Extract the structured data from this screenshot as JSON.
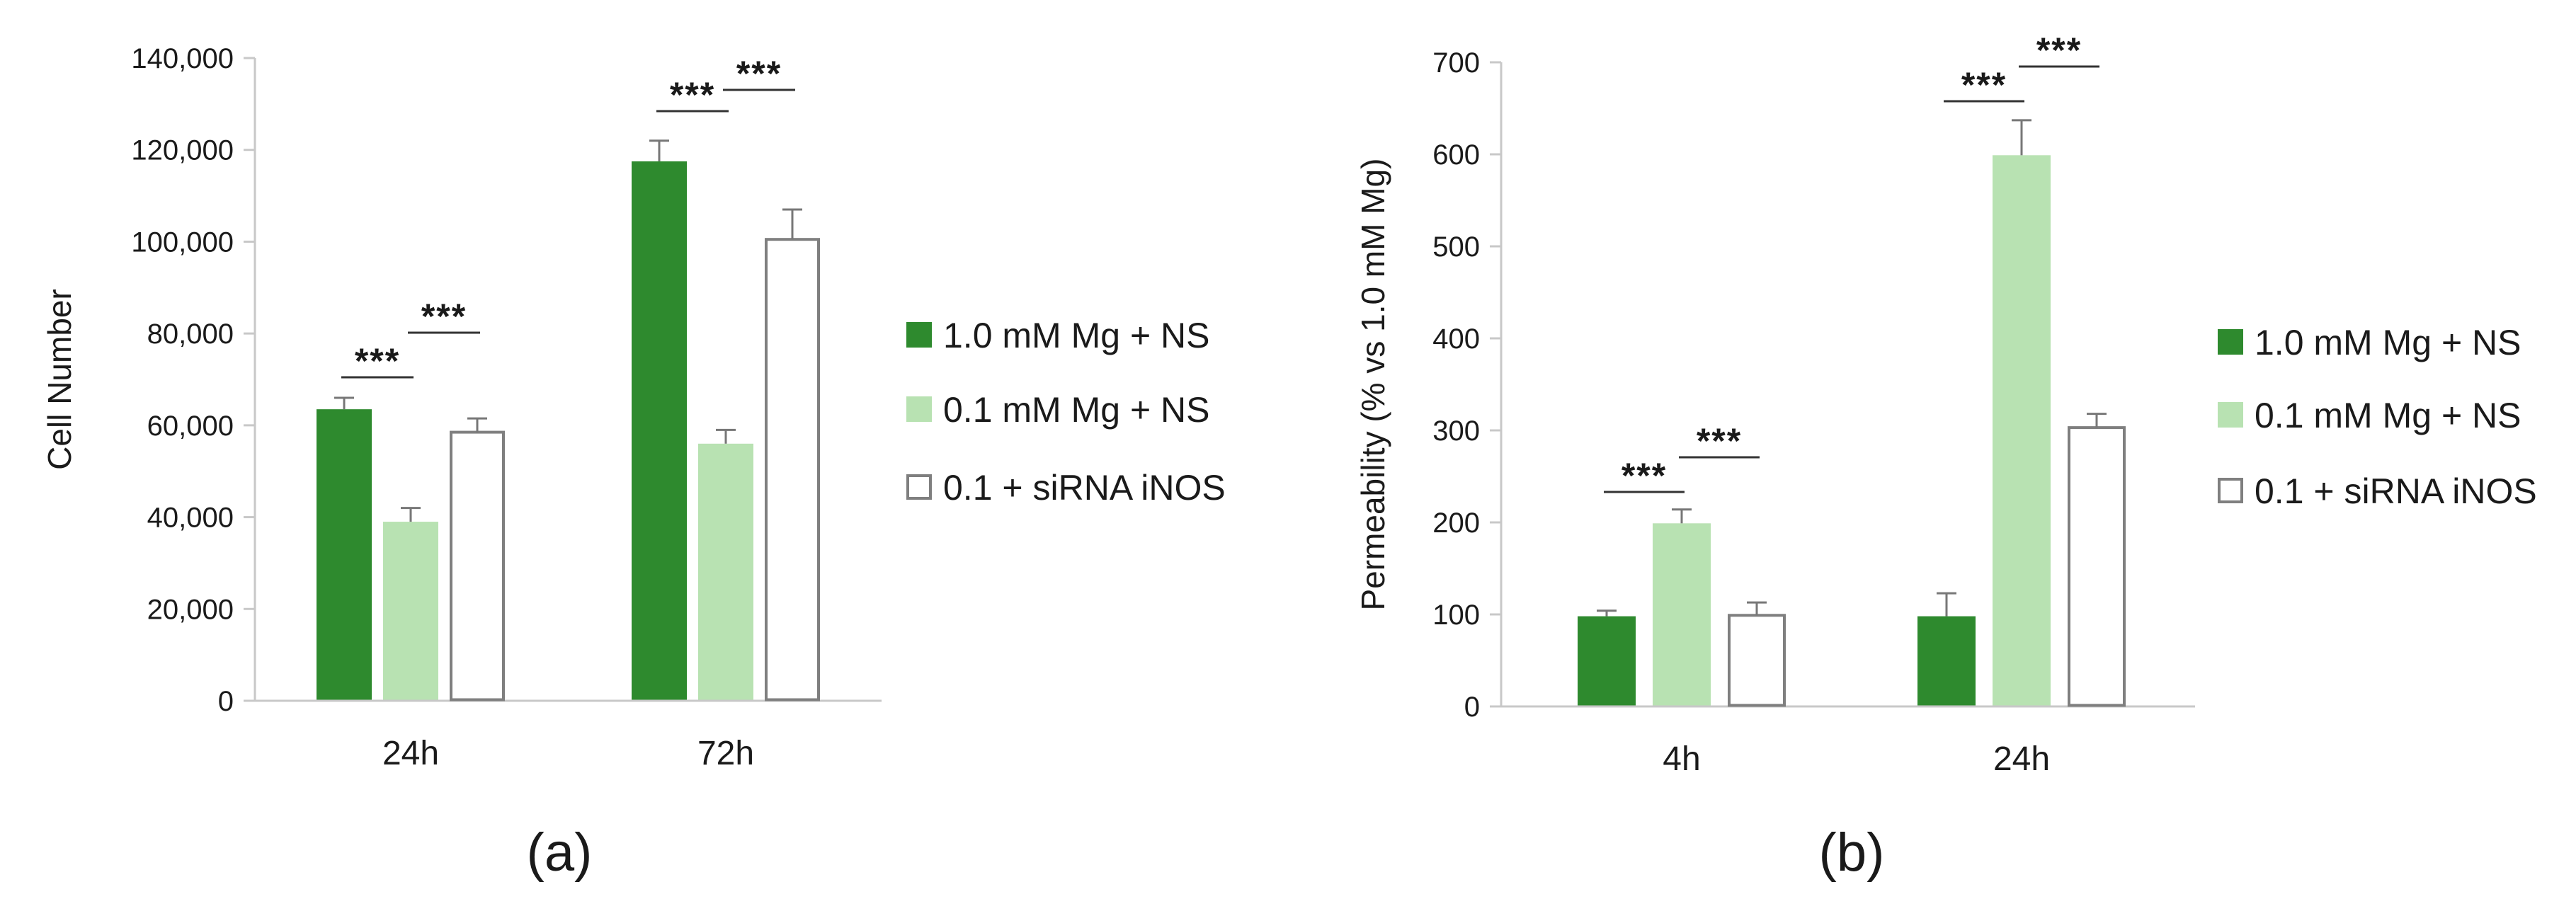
{
  "chart_data": [
    {
      "type": "bar",
      "panel_label": "(a)",
      "ylabel": "Cell Number",
      "ylim": [
        0,
        140000
      ],
      "yticks": [
        0,
        20000,
        40000,
        60000,
        80000,
        100000,
        120000,
        140000
      ],
      "ytick_labels": [
        "0",
        "20,000",
        "40,000",
        "60,000",
        "80,000",
        "100,000",
        "120,000",
        "140,000"
      ],
      "categories": [
        "24h",
        "72h"
      ],
      "series": [
        {
          "name": "1.0 mM Mg + NS",
          "color": "#2e8a2e",
          "style": "filled",
          "values": [
            63500,
            117500
          ],
          "errors": [
            2500,
            4500
          ]
        },
        {
          "name": "0.1 mM Mg + NS",
          "color": "#b8e2b2",
          "style": "filled",
          "values": [
            39000,
            56000
          ],
          "errors": [
            3000,
            3000
          ]
        },
        {
          "name": "0.1 + siRNA iNOS",
          "color": "#7f7f7f",
          "style": "outline",
          "values": [
            58500,
            100500
          ],
          "errors": [
            3000,
            6500
          ]
        }
      ],
      "significance": [
        {
          "category": 0,
          "from_series": 0,
          "to_series": 1,
          "label": "***"
        },
        {
          "category": 0,
          "from_series": 1,
          "to_series": 2,
          "label": "***"
        },
        {
          "category": 1,
          "from_series": 0,
          "to_series": 1,
          "label": "***"
        },
        {
          "category": 1,
          "from_series": 1,
          "to_series": 2,
          "label": "***"
        }
      ],
      "legend": "right",
      "grid": false
    },
    {
      "type": "bar",
      "panel_label": "(b)",
      "ylabel": "Permeability (% vs 1.0 mM Mg)",
      "ylim": [
        0,
        700
      ],
      "yticks": [
        0,
        100,
        200,
        300,
        400,
        500,
        600,
        700
      ],
      "ytick_labels": [
        "0",
        "100",
        "200",
        "300",
        "400",
        "500",
        "600",
        "700"
      ],
      "categories": [
        "4h",
        "24h"
      ],
      "series": [
        {
          "name": "1.0 mM Mg + NS",
          "color": "#2e8a2e",
          "style": "filled",
          "values": [
            98,
            98
          ],
          "errors": [
            6,
            25
          ]
        },
        {
          "name": "0.1 mM Mg + NS",
          "color": "#b8e2b2",
          "style": "filled",
          "values": [
            199,
            599
          ],
          "errors": [
            15,
            38
          ]
        },
        {
          "name": "0.1 + siRNA iNOS",
          "color": "#7f7f7f",
          "style": "outline",
          "values": [
            99,
            303
          ],
          "errors": [
            14,
            15
          ]
        }
      ],
      "significance": [
        {
          "category": 0,
          "from_series": 0,
          "to_series": 1,
          "label": "***"
        },
        {
          "category": 0,
          "from_series": 1,
          "to_series": 2,
          "label": "***"
        },
        {
          "category": 1,
          "from_series": 0,
          "to_series": 1,
          "label": "***"
        },
        {
          "category": 1,
          "from_series": 1,
          "to_series": 2,
          "label": "***"
        }
      ],
      "legend": "right",
      "grid": false
    }
  ]
}
